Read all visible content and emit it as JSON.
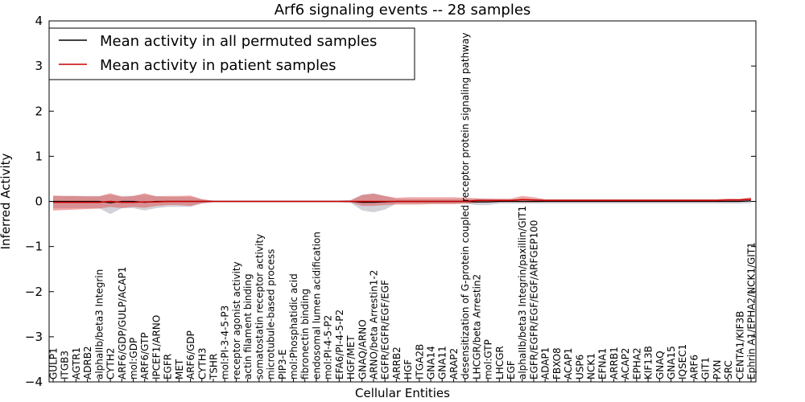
{
  "chart_data": {
    "type": "line",
    "title": "Arf6 signaling events -- 28 samples",
    "xlabel": "Cellular Entities",
    "ylabel": "Inferred Activity",
    "ylim": [
      -4,
      4
    ],
    "yticks": [
      -4,
      -3,
      -2,
      -1,
      0,
      1,
      2,
      3,
      4
    ],
    "grid": false,
    "legend_position": "top-left",
    "categories": [
      "GULP1",
      "ITGB3",
      "AGTR1",
      "ADRB2",
      "alphaIIb/beta3 Integrin",
      "CYTH2",
      "ARF6/GDP/GULP/ACAP1",
      "mol:GDP",
      "ARF6/GTP",
      "IPCEF1/ARNO",
      "EGFR",
      "MET",
      "ARF6/GDP",
      "CYTH3",
      "TSHR",
      "mol:PI-3-4-5-P3",
      "receptor agonist activity",
      "actin filament binding",
      "somatostatin receptor activity",
      "microtubule-based process",
      "PIP3-E",
      "mol:Phosphatidic acid",
      "fibronectin binding",
      "endosomal lumen acidification",
      "mol:PI-4-5-P2",
      "EFA6/PI-4-5-P2",
      "HGF/MET",
      "GNAQ/ARNO",
      "ARNO/beta Arrestin1-2",
      "EGFR/EGFR/EGF/EGF",
      "ARRB2",
      "HGF",
      "ITGA2B",
      "GNA14",
      "GNA11",
      "ARAP2",
      "desensitization of G-protein coupled receptor protein signaling pathway",
      "LHCGR/beta Arrestin2",
      "mol:GTP",
      "LHCGR",
      "EGF",
      "alphaIIb/beta3 Integrin/paxillin/GIT1",
      "EGFR/EGFR/EGF/EGF/ARFGEP100",
      "ADAP1",
      "FBXO8",
      "ACAP1",
      "USP6",
      "NCK1",
      "EFNA1",
      "ARRB1",
      "ACAP2",
      "EPHA2",
      "KIF13B",
      "GNAQ",
      "GNA15",
      "IQSEC1",
      "ARF6",
      "GIT1",
      "PXN",
      "SRC",
      "CENTA1/KIF3B",
      "Ephrin A1/EPHA2/NCK1/GIT1"
    ],
    "series": [
      {
        "name": "Mean activity in all permuted samples",
        "color": "#000000",
        "values": [
          0.0,
          0.0,
          0.0,
          0.0,
          0.0,
          -0.03,
          0.0,
          0.0,
          -0.02,
          0.0,
          0.0,
          0.0,
          0.0,
          0.0,
          0.0,
          0.0,
          0.0,
          0.0,
          0.0,
          0.0,
          0.0,
          0.0,
          0.0,
          0.0,
          0.0,
          0.0,
          0.0,
          -0.02,
          -0.02,
          -0.01,
          0.0,
          0.0,
          0.0,
          0.0,
          0.0,
          0.0,
          0.0,
          -0.01,
          -0.01,
          0.0,
          0.0,
          0.0,
          0.0,
          0.0,
          0.0,
          0.0,
          0.0,
          0.0,
          0.0,
          0.0,
          0.0,
          0.0,
          0.0,
          0.0,
          0.0,
          0.0,
          0.0,
          0.0,
          0.0,
          0.0,
          0.0,
          0.01
        ],
        "band_low": [
          -0.15,
          -0.15,
          -0.15,
          -0.15,
          -0.15,
          -0.28,
          -0.15,
          -0.15,
          -0.2,
          -0.15,
          -0.12,
          -0.12,
          -0.12,
          -0.05,
          -0.02,
          -0.02,
          -0.02,
          -0.02,
          -0.02,
          -0.02,
          -0.02,
          -0.02,
          -0.02,
          -0.02,
          -0.02,
          -0.02,
          -0.03,
          -0.2,
          -0.24,
          -0.18,
          -0.05,
          -0.05,
          -0.05,
          -0.05,
          -0.05,
          -0.05,
          -0.05,
          -0.08,
          -0.08,
          -0.05,
          -0.05,
          -0.05,
          -0.05,
          -0.05,
          -0.05,
          -0.05,
          -0.05,
          -0.05,
          -0.05,
          -0.05,
          -0.05,
          -0.05,
          -0.05,
          -0.05,
          -0.05,
          -0.05,
          -0.05,
          -0.05,
          -0.05,
          -0.05,
          -0.05,
          -0.04
        ],
        "band_high": [
          0.12,
          0.12,
          0.12,
          0.12,
          0.12,
          0.15,
          0.12,
          0.12,
          0.15,
          0.12,
          0.1,
          0.1,
          0.1,
          0.05,
          0.02,
          0.02,
          0.02,
          0.02,
          0.02,
          0.02,
          0.02,
          0.02,
          0.02,
          0.02,
          0.02,
          0.02,
          0.03,
          0.15,
          0.18,
          0.12,
          0.05,
          0.05,
          0.05,
          0.05,
          0.05,
          0.05,
          0.05,
          0.06,
          0.06,
          0.05,
          0.05,
          0.05,
          0.05,
          0.05,
          0.05,
          0.05,
          0.05,
          0.05,
          0.05,
          0.05,
          0.05,
          0.05,
          0.05,
          0.05,
          0.05,
          0.05,
          0.05,
          0.05,
          0.05,
          0.05,
          0.05,
          0.07
        ]
      },
      {
        "name": "Mean activity in patient samples",
        "color": "#cc0000",
        "values": [
          -0.02,
          -0.02,
          -0.02,
          -0.02,
          -0.02,
          0.0,
          -0.02,
          -0.02,
          -0.01,
          -0.01,
          0.0,
          0.0,
          0.0,
          0.0,
          0.0,
          0.0,
          0.0,
          0.0,
          0.0,
          0.0,
          0.0,
          0.0,
          0.0,
          0.0,
          0.0,
          0.0,
          0.0,
          0.0,
          0.0,
          0.0,
          0.0,
          0.0,
          0.0,
          0.0,
          0.0,
          0.0,
          0.0,
          0.02,
          0.02,
          0.02,
          0.02,
          0.04,
          0.03,
          0.02,
          0.02,
          0.02,
          0.02,
          0.02,
          0.02,
          0.02,
          0.02,
          0.02,
          0.02,
          0.02,
          0.02,
          0.02,
          0.02,
          0.02,
          0.02,
          0.03,
          0.03,
          0.05
        ],
        "band_low": [
          -0.2,
          -0.19,
          -0.18,
          -0.17,
          -0.16,
          -0.12,
          -0.15,
          -0.12,
          -0.14,
          -0.1,
          -0.08,
          -0.08,
          -0.1,
          -0.04,
          -0.01,
          -0.01,
          -0.01,
          -0.01,
          -0.01,
          -0.01,
          -0.01,
          -0.01,
          -0.01,
          -0.01,
          -0.01,
          -0.01,
          -0.02,
          -0.1,
          -0.1,
          -0.08,
          -0.07,
          -0.07,
          -0.07,
          -0.06,
          -0.06,
          -0.06,
          -0.05,
          -0.03,
          -0.02,
          -0.02,
          -0.01,
          -0.02,
          -0.02,
          -0.01,
          -0.01,
          -0.01,
          -0.01,
          -0.01,
          -0.01,
          -0.01,
          -0.01,
          -0.01,
          -0.01,
          -0.01,
          -0.01,
          -0.01,
          -0.01,
          -0.01,
          -0.01,
          -0.01,
          -0.01,
          0.0
        ],
        "band_high": [
          0.13,
          0.12,
          0.12,
          0.11,
          0.11,
          0.18,
          0.1,
          0.12,
          0.18,
          0.11,
          0.12,
          0.12,
          0.13,
          0.05,
          0.01,
          0.01,
          0.01,
          0.01,
          0.01,
          0.01,
          0.01,
          0.01,
          0.01,
          0.01,
          0.01,
          0.01,
          0.02,
          0.14,
          0.17,
          0.12,
          0.08,
          0.09,
          0.09,
          0.09,
          0.09,
          0.09,
          0.08,
          0.07,
          0.06,
          0.06,
          0.06,
          0.12,
          0.09,
          0.05,
          0.05,
          0.05,
          0.05,
          0.05,
          0.05,
          0.05,
          0.05,
          0.05,
          0.05,
          0.05,
          0.05,
          0.05,
          0.05,
          0.05,
          0.05,
          0.06,
          0.06,
          0.09
        ]
      }
    ]
  }
}
